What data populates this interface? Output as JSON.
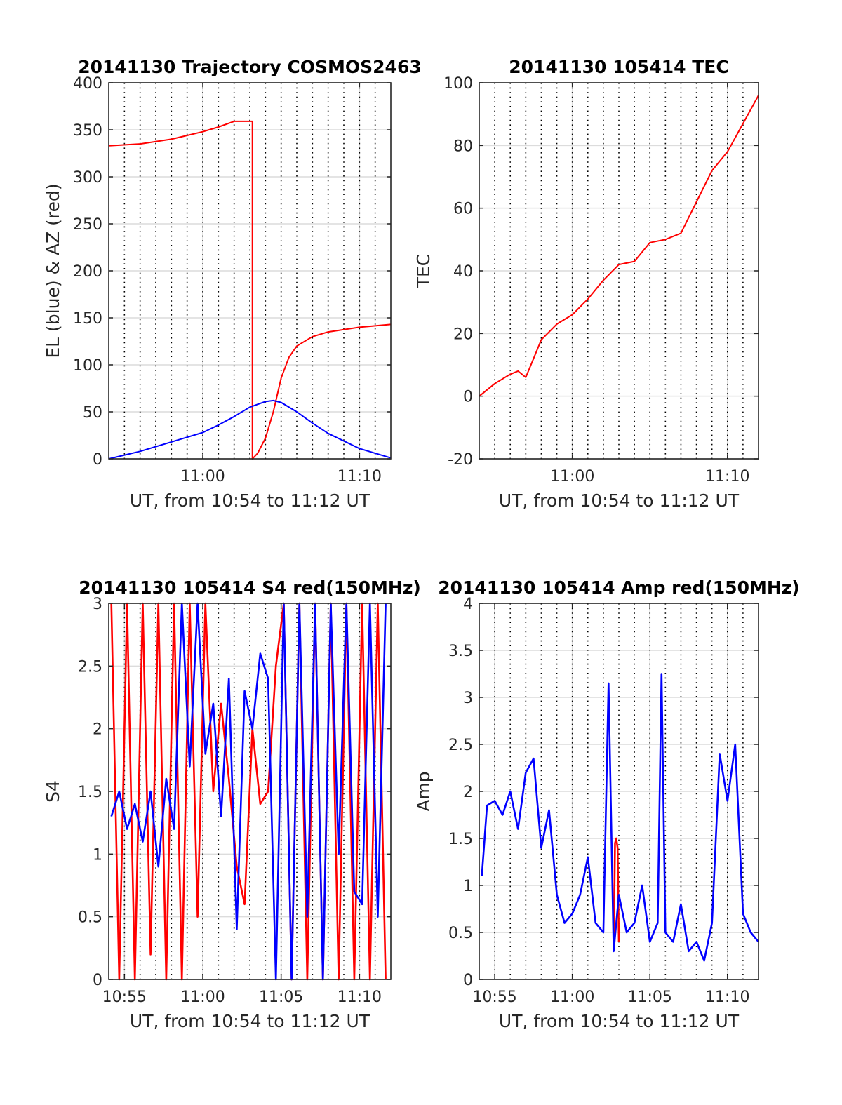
{
  "figure": {
    "colors": {
      "red": "#ff0000",
      "blue": "#0000ff",
      "grid": "#dcdcdc",
      "vgrid": "#000000",
      "axis": "#262626"
    }
  },
  "chart_data": [
    {
      "type": "line",
      "title": "20141130 Trajectory COSMOS2463",
      "xlabel": "UT, from 10:54 to 11:12 UT",
      "ylabel": "EL (blue) & AZ (red)",
      "xlim": [
        "10:54",
        "11:12"
      ],
      "ylim": [
        0,
        400
      ],
      "yticks": [
        "0",
        "50",
        "100",
        "150",
        "200",
        "250",
        "300",
        "350",
        "400"
      ],
      "xticks": [
        "11:00",
        "11:10"
      ],
      "grid": true,
      "series": [
        {
          "color": "red",
          "x": [
            "10:54",
            "10:56",
            "10:58",
            "11:00",
            "11:01",
            "11:02",
            "11:03:10",
            "11:03:10",
            "11:03:30",
            "11:04",
            "11:04:30",
            "11:05",
            "11:05:30",
            "11:06",
            "11:07",
            "11:08",
            "11:10",
            "11:12"
          ],
          "values": [
            333,
            335,
            340,
            348,
            353,
            359,
            359,
            0,
            6,
            22,
            50,
            86,
            108,
            120,
            130,
            135,
            140,
            143
          ]
        },
        {
          "color": "blue",
          "x": [
            "10:54",
            "10:56",
            "10:58",
            "11:00",
            "11:01",
            "11:02",
            "11:03",
            "11:04",
            "11:04:30",
            "11:05",
            "11:06",
            "11:07",
            "11:08",
            "11:10",
            "11:12"
          ],
          "values": [
            0,
            8,
            18,
            28,
            36,
            45,
            55,
            61,
            62,
            60,
            50,
            38,
            27,
            11,
            1
          ]
        }
      ]
    },
    {
      "type": "line",
      "title": "20141130 105414 TEC",
      "xlabel": "UT, from 10:54 to 11:12 UT",
      "ylabel": "TEC",
      "xlim": [
        "10:54",
        "11:12"
      ],
      "ylim": [
        -20,
        100
      ],
      "yticks": [
        "-20",
        "0",
        "20",
        "40",
        "60",
        "80",
        "100"
      ],
      "xticks": [
        "11:00",
        "11:10"
      ],
      "grid": true,
      "series": [
        {
          "color": "red",
          "x": [
            "10:54",
            "10:55",
            "10:56",
            "10:56:30",
            "10:57",
            "10:57:30",
            "10:58",
            "10:59",
            "11:00",
            "11:01",
            "11:02",
            "11:03",
            "11:04",
            "11:05",
            "11:06",
            "11:07",
            "11:08",
            "11:09",
            "11:10",
            "11:11",
            "11:12"
          ],
          "values": [
            0,
            4,
            7,
            8,
            6,
            12,
            18,
            23,
            26,
            31,
            37,
            42,
            43,
            49,
            50,
            52,
            62,
            72,
            78,
            87,
            96
          ]
        }
      ]
    },
    {
      "type": "line",
      "title": "20141130 105414 S4 red(150MHz)",
      "xlabel": "UT, from 10:54 to 11:12 UT",
      "ylabel": "S4",
      "xlim": [
        "10:54",
        "11:12"
      ],
      "ylim": [
        0,
        3
      ],
      "yticks": [
        "0",
        "0.5",
        "1",
        "1.5",
        "2",
        "2.5",
        "3"
      ],
      "xticks": [
        "10:55",
        "11:00",
        "11:05",
        "11:10"
      ],
      "grid": true,
      "series": [
        {
          "color": "red",
          "x": [
            "10:54:10",
            "10:54:40",
            "10:55:10",
            "10:55:40",
            "10:56:10",
            "10:56:40",
            "10:57:10",
            "10:57:40",
            "10:58:10",
            "10:58:40",
            "10:59:10",
            "10:59:40",
            "11:00:10",
            "11:00:40",
            "11:01:10",
            "11:01:40",
            "11:02:10",
            "11:02:40",
            "11:03:10",
            "11:03:40",
            "11:04:10",
            "11:04:40",
            "11:05:10",
            "11:05:40",
            "11:06:10",
            "11:06:40",
            "11:07:10",
            "11:07:40",
            "11:08:10",
            "11:08:40",
            "11:09:10",
            "11:09:40",
            "11:10:10",
            "11:10:40",
            "11:11:10",
            "11:11:40"
          ],
          "values": [
            3,
            0,
            3,
            0,
            3,
            0.2,
            3,
            0,
            3,
            0,
            3,
            0.5,
            3,
            1.5,
            2.2,
            1.6,
            0.9,
            0.6,
            2.0,
            1.4,
            1.5,
            2.5,
            3,
            0,
            3,
            0,
            3,
            0,
            3,
            0,
            3,
            0,
            3,
            0,
            3,
            0
          ]
        },
        {
          "color": "blue",
          "x": [
            "10:54:10",
            "10:54:40",
            "10:55:10",
            "10:55:40",
            "10:56:10",
            "10:56:40",
            "10:57:10",
            "10:57:40",
            "10:58:10",
            "10:58:40",
            "10:59:10",
            "10:59:40",
            "11:00:10",
            "11:00:40",
            "11:01:10",
            "11:01:40",
            "11:02:10",
            "11:02:40",
            "11:03:10",
            "11:03:40",
            "11:04:10",
            "11:04:40",
            "11:05:10",
            "11:05:40",
            "11:06:10",
            "11:06:40",
            "11:07:10",
            "11:07:40",
            "11:08:10",
            "11:08:40",
            "11:09:10",
            "11:09:40",
            "11:10:10",
            "11:10:40",
            "11:11:10",
            "11:11:40"
          ],
          "values": [
            1.3,
            1.5,
            1.2,
            1.4,
            1.1,
            1.5,
            0.9,
            1.6,
            1.2,
            3,
            1.7,
            3,
            1.8,
            2.2,
            1.3,
            2.4,
            0.4,
            2.3,
            2.0,
            2.6,
            2.4,
            0,
            3,
            0,
            3,
            0.5,
            3,
            0,
            3,
            1.0,
            3,
            0.7,
            0.6,
            3,
            0.5,
            3
          ]
        }
      ]
    },
    {
      "type": "line",
      "title": "20141130 105414 Amp red(150MHz)",
      "xlabel": "UT, from 10:54 to 11:12 UT",
      "ylabel": "Amp",
      "xlim": [
        "10:54",
        "11:12"
      ],
      "ylim": [
        0,
        4
      ],
      "yticks": [
        "0",
        "0.5",
        "1",
        "1.5",
        "2",
        "2.5",
        "3",
        "3.5",
        "4"
      ],
      "xticks": [
        "10:55",
        "11:00",
        "11:05",
        "11:10"
      ],
      "grid": true,
      "series": [
        {
          "color": "red",
          "x": [
            "11:02:40",
            "11:02:45",
            "11:02:50",
            "11:02:55",
            "11:03:00"
          ],
          "values": [
            0.3,
            1.45,
            1.5,
            1.4,
            0.4
          ]
        },
        {
          "color": "blue",
          "x": [
            "10:54:10",
            "10:54:30",
            "10:55:00",
            "10:55:30",
            "10:56:00",
            "10:56:30",
            "10:57:00",
            "10:57:30",
            "10:58:00",
            "10:58:30",
            "10:59:00",
            "10:59:30",
            "11:00:00",
            "11:00:30",
            "11:01:00",
            "11:01:30",
            "11:02:00",
            "11:02:20",
            "11:02:40",
            "11:03:00",
            "11:03:30",
            "11:04:00",
            "11:04:30",
            "11:05:00",
            "11:05:30",
            "11:05:45",
            "11:06:00",
            "11:06:30",
            "11:07:00",
            "11:07:30",
            "11:08:00",
            "11:08:30",
            "11:09:00",
            "11:09:30",
            "11:10:00",
            "11:10:30",
            "11:11:00",
            "11:11:30",
            "11:12:00"
          ],
          "values": [
            1.1,
            1.85,
            1.9,
            1.75,
            2.0,
            1.6,
            2.2,
            2.35,
            1.4,
            1.8,
            0.9,
            0.6,
            0.7,
            0.9,
            1.3,
            0.6,
            0.5,
            3.15,
            0.3,
            0.9,
            0.5,
            0.6,
            1.0,
            0.4,
            0.6,
            3.25,
            0.5,
            0.4,
            0.8,
            0.3,
            0.4,
            0.2,
            0.6,
            2.4,
            1.9,
            2.5,
            0.7,
            0.5,
            0.4
          ]
        }
      ]
    }
  ]
}
